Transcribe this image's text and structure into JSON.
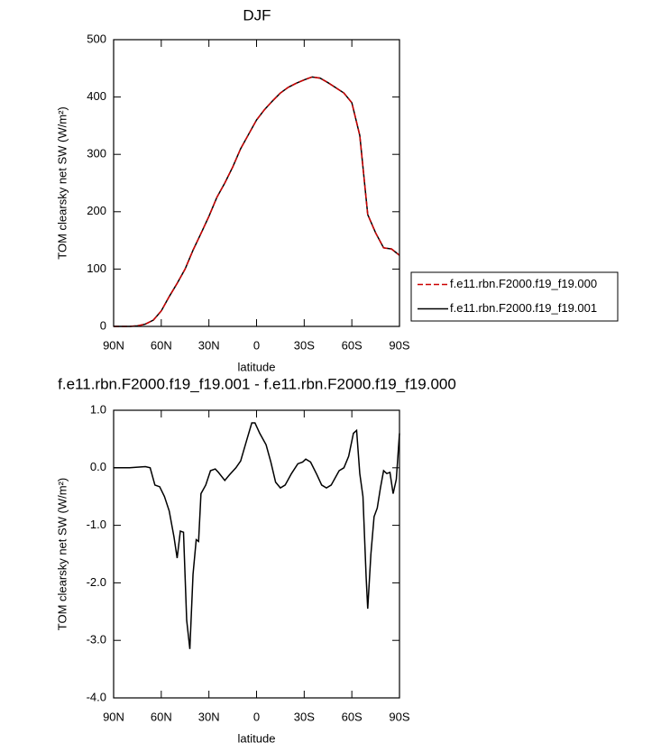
{
  "chart_data": [
    {
      "type": "line",
      "title": "DJF",
      "xlabel": "latitude",
      "ylabel": "TOM clearsky net SW (W/m²)",
      "x": [
        90,
        85,
        80,
        75,
        70,
        65,
        60,
        55,
        50,
        45,
        40,
        35,
        30,
        25,
        20,
        15,
        10,
        5,
        0,
        -5,
        -10,
        -15,
        -20,
        -25,
        -30,
        -35,
        -40,
        -45,
        -50,
        -55,
        -60,
        -65,
        -70,
        -75,
        -80,
        -85,
        -90
      ],
      "series": [
        {
          "name": "f.e11.rbn.F2000.f19_f19.000",
          "color": "#cc0000",
          "linestyle": "dashed",
          "values": [
            0,
            0,
            0,
            1,
            4,
            11,
            27,
            52,
            75,
            100,
            133,
            162,
            192,
            225,
            250,
            278,
            310,
            335,
            360,
            378,
            393,
            407,
            417,
            424,
            430,
            435,
            433,
            425,
            416,
            407,
            390,
            333,
            195,
            163,
            137,
            135,
            124
          ]
        },
        {
          "name": "f.e11.rbn.F2000.f19_f19.001",
          "color": "#000000",
          "linestyle": "solid",
          "values": [
            0,
            0,
            0,
            1,
            4,
            11,
            27,
            52,
            75,
            100,
            133,
            162,
            192,
            225,
            250,
            278,
            310,
            335,
            360,
            378,
            393,
            407,
            417,
            424,
            430,
            435,
            433,
            425,
            416,
            407,
            390,
            333,
            195,
            163,
            137,
            135,
            124
          ]
        }
      ],
      "xlim": [
        90,
        -90
      ],
      "xticks": [
        {
          "value": 90,
          "label": "90N"
        },
        {
          "value": 60,
          "label": "60N"
        },
        {
          "value": 30,
          "label": "30N"
        },
        0,
        {
          "value": -30,
          "label": "30S"
        },
        {
          "value": -60,
          "label": "60S"
        },
        {
          "value": -90,
          "label": "90S"
        }
      ],
      "ylim": [
        0,
        500
      ],
      "yticks": [
        0,
        100,
        200,
        300,
        400,
        500
      ]
    },
    {
      "type": "line",
      "title": "f.e11.rbn.F2000.f19_f19.001 - f.e11.rbn.F2000.f19_f19.000",
      "xlabel": "latitude",
      "ylabel": "TOM clearsky net SW (W/m²)",
      "x": [
        90,
        80,
        75,
        70,
        67,
        64,
        61,
        58,
        55,
        52,
        50,
        48,
        46,
        44,
        42,
        40,
        38,
        36.5,
        35,
        32,
        29,
        26,
        24,
        20,
        17,
        13,
        10,
        6,
        3,
        1,
        -2,
        -6,
        -9,
        -12,
        -15,
        -18,
        -22,
        -26,
        -29,
        -31,
        -34,
        -38,
        -41,
        -44,
        -47,
        -52,
        -55,
        -58,
        -61,
        -63,
        -65,
        -67,
        -69,
        -70,
        -72,
        -74,
        -76,
        -78,
        -80,
        -82,
        -84,
        -86,
        -88,
        -90
      ],
      "values": [
        0,
        0,
        0.01,
        0.02,
        0,
        -0.3,
        -0.33,
        -0.5,
        -0.75,
        -1.2,
        -1.57,
        -1.1,
        -1.12,
        -2.65,
        -3.15,
        -1.85,
        -1.25,
        -1.28,
        -0.45,
        -0.3,
        -0.05,
        -0.02,
        -0.08,
        -0.22,
        -0.12,
        0,
        0.12,
        0.5,
        0.78,
        0.78,
        0.6,
        0.4,
        0.1,
        -0.25,
        -0.35,
        -0.3,
        -0.1,
        0.07,
        0.1,
        0.15,
        0.1,
        -0.12,
        -0.3,
        -0.35,
        -0.3,
        -0.05,
        0,
        0.2,
        0.6,
        0.65,
        -0.1,
        -0.5,
        -1.9,
        -2.45,
        -1.5,
        -0.85,
        -0.7,
        -0.35,
        -0.05,
        -0.1,
        -0.08,
        -0.45,
        -0.2,
        0.6
      ],
      "color": "#000000",
      "xlim": [
        90,
        -90
      ],
      "xticks": [
        {
          "value": 90,
          "label": "90N"
        },
        {
          "value": 60,
          "label": "60N"
        },
        {
          "value": 30,
          "label": "30N"
        },
        0,
        {
          "value": -30,
          "label": "30S"
        },
        {
          "value": -60,
          "label": "60S"
        },
        {
          "value": -90,
          "label": "90S"
        }
      ],
      "ylim": [
        -4,
        1
      ],
      "yticks": [
        {
          "value": 1,
          "label": "1.0"
        },
        {
          "value": 0,
          "label": "0.0"
        },
        {
          "value": -1,
          "label": "-1.0"
        },
        {
          "value": -2,
          "label": "-2.0"
        },
        {
          "value": -3,
          "label": "-3.0"
        },
        {
          "value": -4,
          "label": "-4.0"
        }
      ]
    }
  ]
}
